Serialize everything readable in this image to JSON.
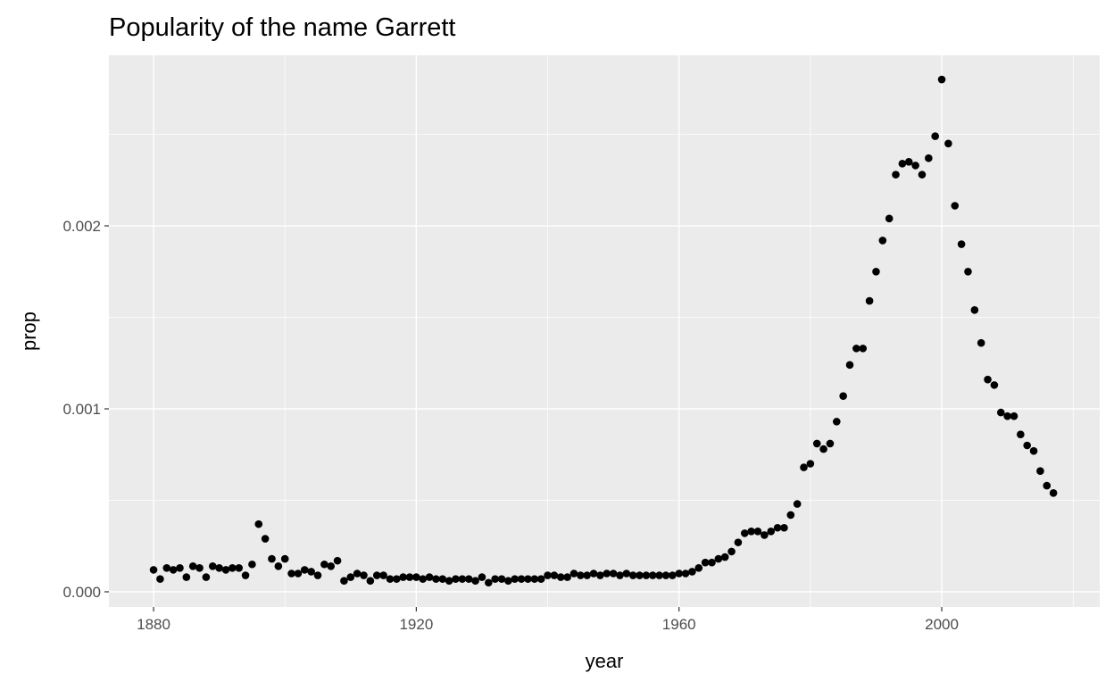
{
  "chart_data": {
    "type": "scatter",
    "title": "Popularity of the name Garrett",
    "x_label": "year",
    "y_label": "prop",
    "x": [
      1880,
      1881,
      1882,
      1883,
      1884,
      1885,
      1886,
      1887,
      1888,
      1889,
      1890,
      1891,
      1892,
      1893,
      1894,
      1895,
      1896,
      1897,
      1898,
      1899,
      1900,
      1901,
      1902,
      1903,
      1904,
      1905,
      1906,
      1907,
      1908,
      1909,
      1910,
      1911,
      1912,
      1913,
      1914,
      1915,
      1916,
      1917,
      1918,
      1919,
      1920,
      1921,
      1922,
      1923,
      1924,
      1925,
      1926,
      1927,
      1928,
      1929,
      1930,
      1931,
      1932,
      1933,
      1934,
      1935,
      1936,
      1937,
      1938,
      1939,
      1940,
      1941,
      1942,
      1943,
      1944,
      1945,
      1946,
      1947,
      1948,
      1949,
      1950,
      1951,
      1952,
      1953,
      1954,
      1955,
      1956,
      1957,
      1958,
      1959,
      1960,
      1961,
      1962,
      1963,
      1964,
      1965,
      1966,
      1967,
      1968,
      1969,
      1970,
      1971,
      1972,
      1973,
      1974,
      1975,
      1976,
      1977,
      1978,
      1979,
      1980,
      1981,
      1982,
      1983,
      1984,
      1985,
      1986,
      1987,
      1988,
      1989,
      1990,
      1991,
      1992,
      1993,
      1994,
      1995,
      1996,
      1997,
      1998,
      1999,
      2000,
      2001,
      2002,
      2003,
      2004,
      2005,
      2006,
      2007,
      2008,
      2009,
      2010,
      2011,
      2012,
      2013,
      2014,
      2015,
      2016,
      2017
    ],
    "values": [
      0.00012,
      7e-05,
      0.00013,
      0.00012,
      0.00013,
      8e-05,
      0.00014,
      0.00013,
      8e-05,
      0.00014,
      0.00013,
      0.00012,
      0.00013,
      0.00013,
      9e-05,
      0.00015,
      0.00037,
      0.00029,
      0.00018,
      0.00014,
      0.00018,
      0.0001,
      0.0001,
      0.00012,
      0.00011,
      9e-05,
      0.00015,
      0.00014,
      0.00017,
      6e-05,
      8e-05,
      0.0001,
      9e-05,
      6e-05,
      9e-05,
      9e-05,
      7e-05,
      7e-05,
      8e-05,
      8e-05,
      8e-05,
      7e-05,
      8e-05,
      7e-05,
      7e-05,
      6e-05,
      7e-05,
      7e-05,
      7e-05,
      6e-05,
      8e-05,
      5e-05,
      7e-05,
      7e-05,
      6e-05,
      7e-05,
      7e-05,
      7e-05,
      7e-05,
      7e-05,
      9e-05,
      9e-05,
      8e-05,
      8e-05,
      0.0001,
      9e-05,
      9e-05,
      0.0001,
      9e-05,
      0.0001,
      0.0001,
      9e-05,
      0.0001,
      9e-05,
      9e-05,
      9e-05,
      9e-05,
      9e-05,
      9e-05,
      9e-05,
      0.0001,
      0.0001,
      0.00011,
      0.00013,
      0.00016,
      0.00016,
      0.00018,
      0.00019,
      0.00022,
      0.00027,
      0.00032,
      0.00033,
      0.00033,
      0.00031,
      0.00033,
      0.00035,
      0.00035,
      0.00042,
      0.00048,
      0.00068,
      0.0007,
      0.00081,
      0.00078,
      0.00081,
      0.00093,
      0.00107,
      0.00124,
      0.00133,
      0.00133,
      0.00159,
      0.00175,
      0.00192,
      0.00204,
      0.00228,
      0.00234,
      0.00235,
      0.00233,
      0.00228,
      0.00237,
      0.00249,
      0.0028,
      0.00245,
      0.00211,
      0.0019,
      0.00175,
      0.00154,
      0.00136,
      0.00116,
      0.00113,
      0.00098,
      0.00096,
      0.00096,
      0.00086,
      0.0008,
      0.00077,
      0.00066,
      0.00058,
      0.00054
    ],
    "color": "#000000",
    "xlim": [
      1873.2,
      2024.05
    ],
    "ylim": [
      -8.3e-05,
      0.002932
    ],
    "xticks": [
      1880,
      1920,
      1960,
      2000
    ],
    "yticks": [
      {
        "value": 0,
        "label": "0.000"
      },
      0.001,
      0.002
    ],
    "xminor": [
      1900,
      1940,
      1980,
      2020
    ],
    "yminor": [
      0.0005,
      0.0015,
      0.0025
    ],
    "grid": true
  }
}
